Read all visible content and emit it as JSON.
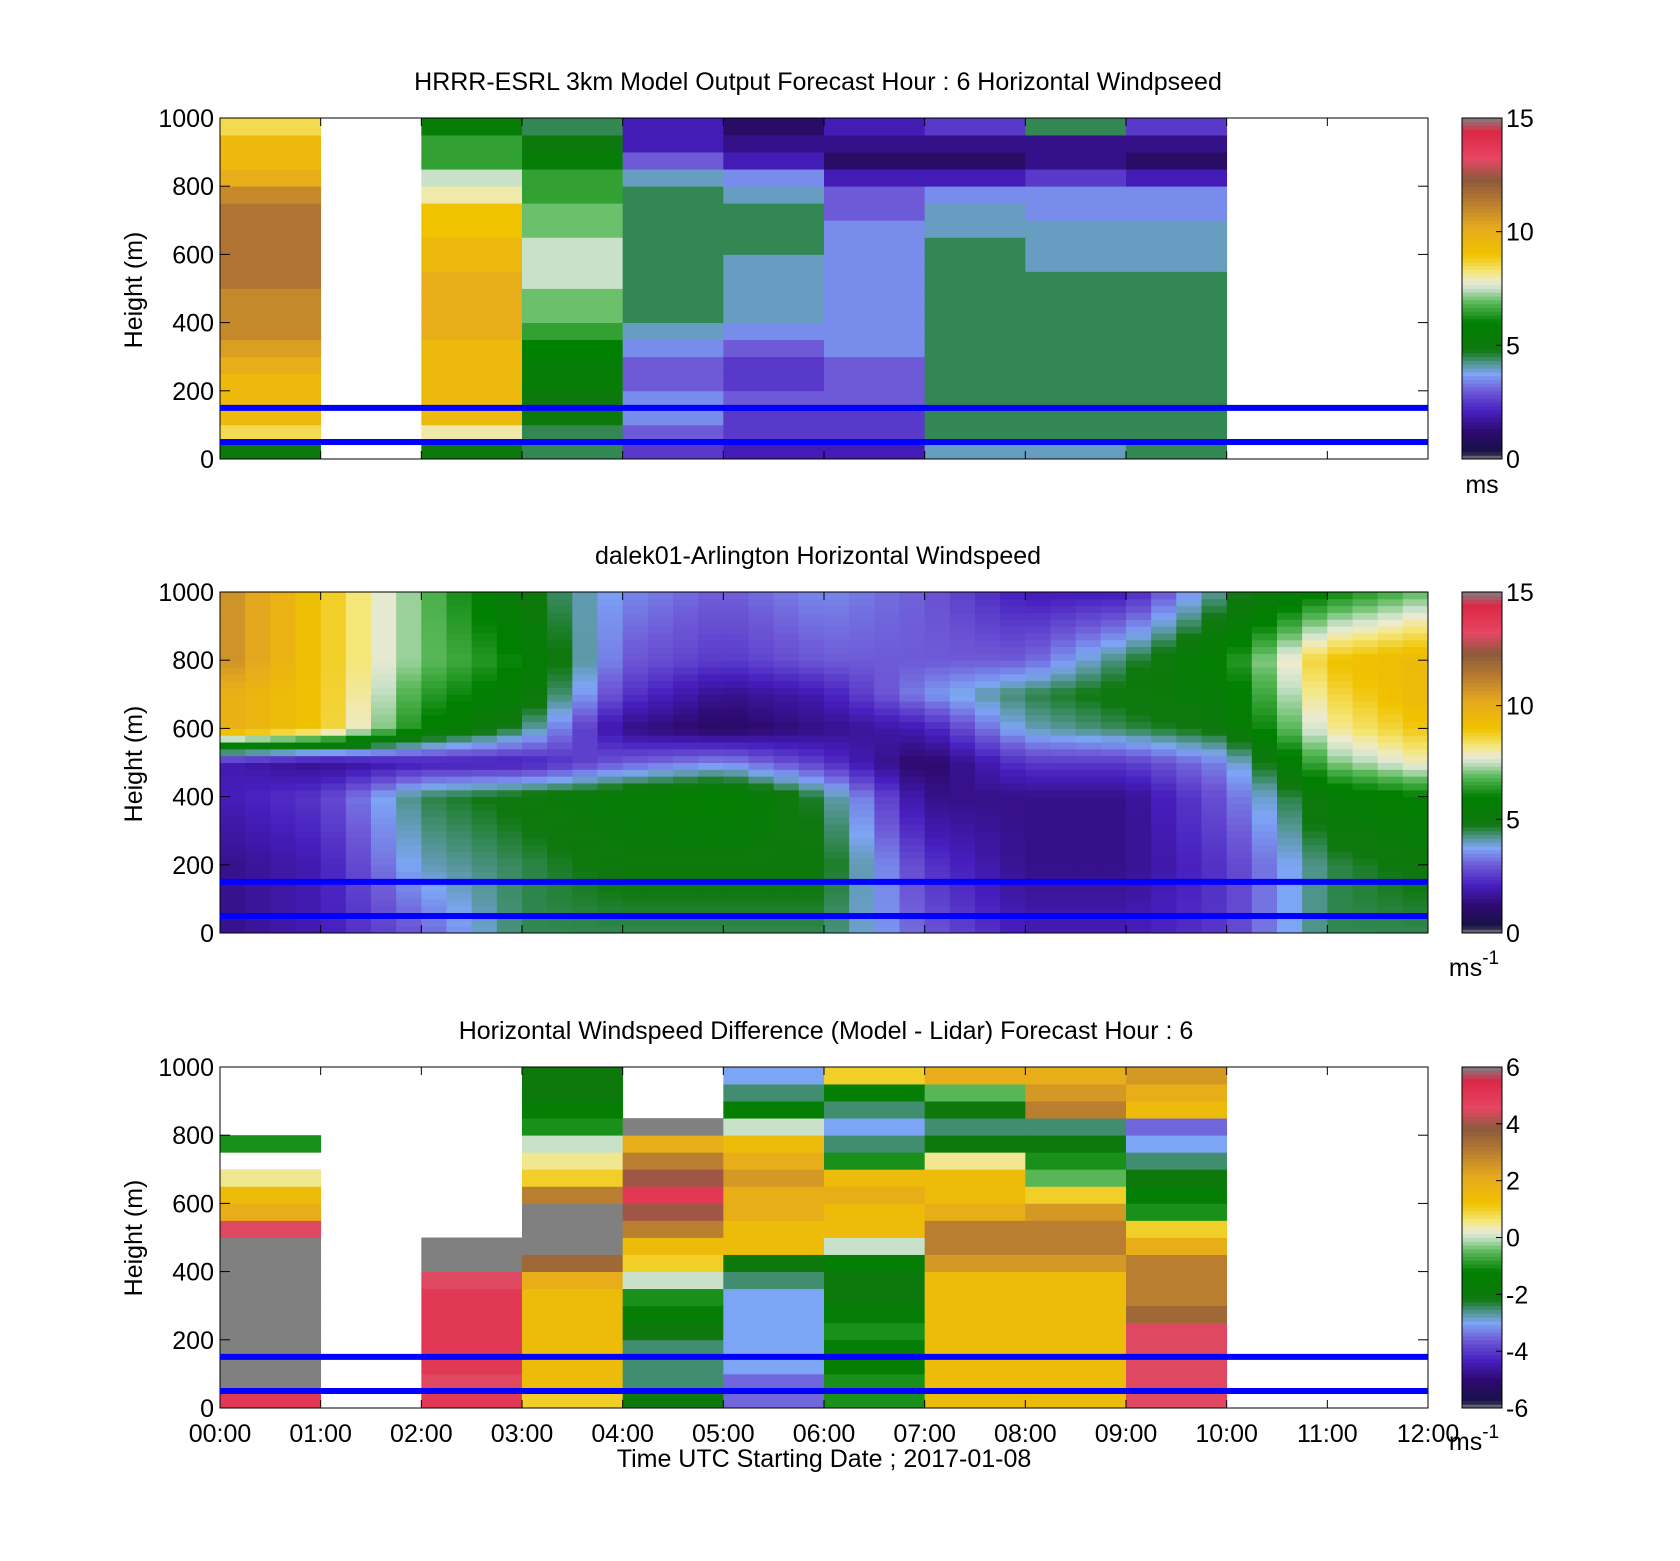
{
  "chart_data": [
    {
      "type": "heatmap",
      "title": "HRRR-ESRL 3km Model Output   Forecast Hour : 6 Horizontal Windpseed",
      "ylabel": "Height (m)",
      "xlabel": "",
      "xlim": [
        0,
        12
      ],
      "ylim": [
        0,
        1000
      ],
      "y_ticks": [
        "0",
        "200",
        "400",
        "600",
        "800",
        "1000"
      ],
      "x_ticks": [],
      "colorbar": {
        "min": 0,
        "max": 15,
        "ticks": [
          "0",
          "5",
          "10",
          "15"
        ],
        "unit_main": "ms",
        "unit_sup": ""
      },
      "reference_lines_m": [
        50,
        150
      ],
      "x": [
        0.5,
        1.5,
        2.5,
        3.5,
        4.5,
        5.5,
        6.5,
        7.5,
        8.5,
        9.5,
        10.5,
        11.5
      ],
      "heights": [
        0,
        50,
        100,
        150,
        200,
        250,
        300,
        350,
        400,
        450,
        500,
        550,
        600,
        650,
        700,
        750,
        800,
        850,
        900,
        950,
        1000
      ],
      "columns": [
        [
          5,
          8.5,
          9.5,
          9.5,
          9.5,
          10,
          10.5,
          11,
          11,
          11,
          11.5,
          11.5,
          11.5,
          11.5,
          11.5,
          11,
          10,
          9.5,
          9.5,
          8.5
        ],
        null,
        [
          5,
          8,
          9.5,
          9.5,
          9.5,
          9.5,
          9.5,
          10,
          10,
          10,
          10,
          9.5,
          9.5,
          9,
          9,
          8,
          7.5,
          6.5,
          6.5,
          5.5
        ],
        [
          4.5,
          4.5,
          5,
          5,
          5.5,
          5.5,
          6,
          6.5,
          7,
          7,
          7.5,
          7.5,
          7.5,
          7,
          7,
          6.5,
          6.5,
          5.5,
          5,
          4.5
        ],
        [
          2.5,
          3,
          3.5,
          3.5,
          3,
          3,
          3.5,
          4,
          4.5,
          4.5,
          4.5,
          4.5,
          4.5,
          4.5,
          4.5,
          4.5,
          4,
          3,
          2,
          2
        ],
        [
          2,
          2.5,
          2.5,
          3,
          2.5,
          2.5,
          3,
          3.5,
          4,
          4,
          4,
          4,
          4.5,
          4.5,
          4.5,
          4,
          3.5,
          2,
          1.5,
          1
        ],
        [
          2,
          2.5,
          2.5,
          3,
          3,
          3,
          3.5,
          3.5,
          3.5,
          3.5,
          3.5,
          3.5,
          3.5,
          3.5,
          3,
          3,
          2,
          1,
          1.5,
          2
        ],
        [
          4,
          4.5,
          4.5,
          4.5,
          4.5,
          4.5,
          4.5,
          4.5,
          4.5,
          4.5,
          4.5,
          4.5,
          4.5,
          4,
          4,
          3.5,
          2,
          1,
          1.5,
          2.5
        ],
        [
          4,
          4.5,
          4.5,
          4.5,
          4.5,
          4.5,
          4.5,
          4.5,
          4.5,
          4.5,
          4.5,
          4,
          4,
          4,
          3.5,
          3.5,
          2.5,
          1.5,
          1.5,
          4.5
        ],
        [
          4.5,
          4.5,
          4.5,
          4.5,
          4.5,
          4.5,
          4.5,
          4.5,
          4.5,
          4.5,
          4.5,
          4,
          4,
          4,
          3.5,
          3.5,
          2,
          1,
          1.5,
          2.5
        ],
        null,
        null
      ]
    },
    {
      "type": "heatmap",
      "title": "dalek01-Arlington  Horizontal Windspeed",
      "ylabel": "Height (m)",
      "xlabel": "",
      "xlim": [
        0,
        12
      ],
      "ylim": [
        0,
        1000
      ],
      "y_ticks": [
        "0",
        "200",
        "400",
        "600",
        "800",
        "1000"
      ],
      "x_ticks": [],
      "colorbar": {
        "min": 0,
        "max": 15,
        "ticks": [
          "0",
          "5",
          "10",
          "15"
        ],
        "unit_main": "ms",
        "unit_sup": "-1"
      },
      "reference_lines_m": [
        50,
        150
      ],
      "x": [
        0,
        1,
        2,
        3,
        4,
        5,
        6,
        7,
        8,
        9,
        10,
        11,
        12
      ],
      "heights": [
        0,
        200,
        400,
        500,
        600,
        700,
        800,
        1000
      ],
      "z": [
        [
          1.5,
          1.5,
          2,
          2,
          10,
          10,
          11,
          11
        ],
        [
          2,
          2,
          2.5,
          1.5,
          9,
          9,
          9,
          9
        ],
        [
          3,
          4,
          4.5,
          2,
          6,
          6.5,
          7,
          7
        ],
        [
          4.5,
          4.5,
          5,
          2,
          4.5,
          5.5,
          6,
          5
        ],
        [
          4.5,
          5,
          5.5,
          3,
          1.5,
          2.5,
          3,
          3.5
        ],
        [
          4.5,
          5,
          6,
          3.5,
          1,
          1.5,
          2.5,
          3
        ],
        [
          4.5,
          5,
          4.5,
          2.5,
          1.5,
          2,
          3,
          3.5
        ],
        [
          3,
          2.5,
          1.5,
          1,
          2,
          3.5,
          3,
          3
        ],
        [
          2,
          1.5,
          1.5,
          2.5,
          4,
          4.5,
          3,
          2
        ],
        [
          2,
          1.5,
          1.5,
          2.5,
          4.5,
          5,
          4.5,
          2
        ],
        [
          2.5,
          2.5,
          3,
          3.5,
          5,
          5.5,
          6,
          4.5
        ],
        [
          4.5,
          4.5,
          5.5,
          7,
          8,
          8.5,
          9,
          6
        ],
        [
          4.5,
          5,
          6,
          8,
          9,
          9.5,
          9.5,
          7
        ]
      ]
    },
    {
      "type": "heatmap",
      "title": "Horizontal Windspeed Difference (Model - Lidar) Forecast Hour : 6",
      "ylabel": "Height (m)",
      "xlabel": "Time UTC  Starting Date ; 2017-01-08",
      "xlim": [
        0,
        12
      ],
      "ylim": [
        0,
        1000
      ],
      "y_ticks": [
        "0",
        "200",
        "400",
        "600",
        "800",
        "1000"
      ],
      "x_ticks": [
        "00:00",
        "01:00",
        "02:00",
        "03:00",
        "04:00",
        "05:00",
        "06:00",
        "07:00",
        "08:00",
        "09:00",
        "10:00",
        "11:00",
        "12:00"
      ],
      "colorbar": {
        "min": -6,
        "max": 6,
        "ticks": [
          "-6",
          "-4",
          "-2",
          "0",
          "2",
          "4",
          "6"
        ],
        "unit_main": "ms",
        "unit_sup": "-1"
      },
      "reference_lines_m": [
        50,
        150
      ],
      "x": [
        0.5,
        1.5,
        2.5,
        3.5,
        4.5,
        5.5,
        6.5,
        7.5,
        8.5,
        9.5,
        10.5,
        11.5
      ],
      "heights": [
        0,
        50,
        100,
        150,
        200,
        250,
        300,
        350,
        400,
        450,
        500,
        550,
        600,
        650,
        700,
        750,
        800,
        850,
        900,
        950,
        1000
      ],
      "columns": [
        [
          5,
          6.5,
          6.5,
          6.5,
          6.5,
          6.5,
          6.5,
          6.5,
          6.5,
          6.5,
          4.5,
          2,
          1.5,
          0.5,
          null,
          -1,
          null,
          null,
          null,
          null
        ],
        null,
        [
          5,
          4.5,
          5,
          5,
          5,
          5,
          5,
          4.5,
          6.5,
          6.5,
          null,
          null,
          null,
          null,
          null,
          null,
          null,
          null,
          null,
          null
        ],
        [
          1,
          1.5,
          1.5,
          1.5,
          1.5,
          1.5,
          1.5,
          2,
          3.5,
          6.5,
          6.5,
          6.5,
          3,
          1,
          0.5,
          0,
          -1,
          -1.5,
          -2,
          -2
        ],
        [
          -2,
          -2.5,
          -2.5,
          -2.5,
          -2,
          -1.5,
          -1,
          0,
          1,
          1.5,
          3,
          4,
          5,
          4,
          3,
          2,
          6.5,
          null,
          null,
          null
        ],
        [
          -3.5,
          -3.5,
          -3,
          -3,
          -3,
          -3,
          -3,
          -2.5,
          -2,
          1.5,
          1.5,
          2,
          2,
          2.5,
          2,
          1.5,
          0,
          -1.5,
          -2.5,
          -3
        ],
        [
          -1,
          -1,
          -1.5,
          -1.5,
          -1,
          -1.5,
          -2,
          -2,
          -1.5,
          0,
          1.5,
          1.5,
          2,
          1.5,
          -1,
          -2.5,
          -3,
          -2.5,
          -1.5,
          1
        ],
        [
          1.5,
          1.5,
          1.5,
          1.5,
          1.5,
          1.5,
          1.5,
          1.5,
          2.5,
          3,
          3,
          2,
          1.5,
          1.5,
          0.5,
          -2,
          -2.5,
          -2,
          -0.5,
          2
        ],
        [
          1.5,
          1.5,
          1.5,
          1.5,
          1.5,
          1.5,
          1.5,
          1.5,
          2.5,
          3,
          3,
          2.5,
          1,
          -0.5,
          -1,
          -2,
          -2.5,
          3,
          2.5,
          2
        ],
        [
          4.5,
          4.5,
          4.5,
          4.5,
          4.5,
          3.5,
          3,
          3,
          3,
          2,
          1,
          -1,
          -1.5,
          -2,
          -2.5,
          -3,
          -3.5,
          1.5,
          2,
          2.5
        ],
        null,
        null
      ]
    }
  ]
}
